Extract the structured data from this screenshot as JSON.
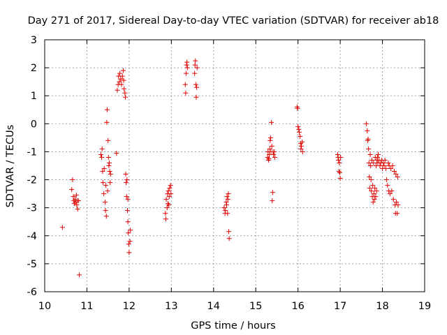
{
  "chart_data": {
    "type": "scatter",
    "title": "Day 271 of 2017, Sidereal Day-to-day VTEC variation (SDTVAR) for receiver ab18",
    "xlabel": "GPS time / hours",
    "ylabel": "SDTVAR / TECUs",
    "xlim": [
      10,
      19
    ],
    "ylim": [
      -6,
      3
    ],
    "xticks": [
      10,
      11,
      12,
      13,
      14,
      15,
      16,
      17,
      18,
      19
    ],
    "yticks": [
      -6,
      -5,
      -4,
      -3,
      -2,
      -1,
      0,
      1,
      2,
      3
    ],
    "xtick_labels": [
      "10",
      "11",
      "12",
      "13",
      "14",
      "15",
      "16",
      "17",
      "18",
      "19"
    ],
    "ytick_labels": [
      "-6",
      "-5",
      "-4",
      "-3",
      "-2",
      "-1",
      "0",
      "1",
      "2",
      "3"
    ],
    "grid": true,
    "marker": "+",
    "color": "#e00000",
    "series": [
      {
        "name": "SDTVAR",
        "points": [
          [
            10.42,
            -3.7
          ],
          [
            10.64,
            -2.35
          ],
          [
            10.66,
            -2.0
          ],
          [
            10.68,
            -2.6
          ],
          [
            10.69,
            -2.75
          ],
          [
            10.7,
            -2.85
          ],
          [
            10.72,
            -2.7
          ],
          [
            10.73,
            -2.8
          ],
          [
            10.75,
            -2.55
          ],
          [
            10.76,
            -2.9
          ],
          [
            10.77,
            -2.75
          ],
          [
            10.78,
            -3.05
          ],
          [
            10.8,
            -2.75
          ],
          [
            10.82,
            -5.4
          ],
          [
            11.33,
            -1.1
          ],
          [
            11.35,
            -1.2
          ],
          [
            11.36,
            -0.9
          ],
          [
            11.37,
            -1.7
          ],
          [
            11.38,
            -2.1
          ],
          [
            11.4,
            -2.5
          ],
          [
            11.41,
            -1.6
          ],
          [
            11.43,
            -2.8
          ],
          [
            11.44,
            -3.1
          ],
          [
            11.45,
            -2.2
          ],
          [
            11.46,
            -3.3
          ],
          [
            11.47,
            0.05
          ],
          [
            11.48,
            0.5
          ],
          [
            11.49,
            -2.4
          ],
          [
            11.5,
            -0.6
          ],
          [
            11.51,
            -1.2
          ],
          [
            11.52,
            -1.5
          ],
          [
            11.53,
            -1.4
          ],
          [
            11.54,
            -1.7
          ],
          [
            11.55,
            -2.1
          ],
          [
            11.56,
            -1.8
          ],
          [
            11.7,
            -1.05
          ],
          [
            11.72,
            1.2
          ],
          [
            11.74,
            1.4
          ],
          [
            11.75,
            1.7
          ],
          [
            11.77,
            1.5
          ],
          [
            11.78,
            1.8
          ],
          [
            11.8,
            1.6
          ],
          [
            11.82,
            1.4
          ],
          [
            11.84,
            1.7
          ],
          [
            11.86,
            1.9
          ],
          [
            11.87,
            1.55
          ],
          [
            11.88,
            1.25
          ],
          [
            11.9,
            1.1
          ],
          [
            11.91,
            0.95
          ],
          [
            11.92,
            -1.8
          ],
          [
            11.93,
            -2.1
          ],
          [
            11.94,
            -2.6
          ],
          [
            11.95,
            -2.0
          ],
          [
            11.96,
            -3.1
          ],
          [
            11.97,
            -3.5
          ],
          [
            11.98,
            -3.9
          ],
          [
            11.99,
            -4.3
          ],
          [
            12.0,
            -4.6
          ],
          [
            12.02,
            -4.2
          ],
          [
            12.03,
            -3.8
          ],
          [
            11.97,
            -2.7
          ],
          [
            12.86,
            -3.2
          ],
          [
            12.87,
            -3.4
          ],
          [
            12.88,
            -2.7
          ],
          [
            12.9,
            -3.0
          ],
          [
            12.91,
            -2.5
          ],
          [
            12.92,
            -2.85
          ],
          [
            12.93,
            -2.4
          ],
          [
            12.94,
            -2.9
          ],
          [
            12.95,
            -2.6
          ],
          [
            12.96,
            -2.3
          ],
          [
            12.98,
            -2.2
          ],
          [
            12.99,
            -2.5
          ],
          [
            13.33,
            1.4
          ],
          [
            13.34,
            1.1
          ],
          [
            13.35,
            1.8
          ],
          [
            13.36,
            2.1
          ],
          [
            13.37,
            2.2
          ],
          [
            13.38,
            2.0
          ],
          [
            13.55,
            1.8
          ],
          [
            13.56,
            2.1
          ],
          [
            13.57,
            2.25
          ],
          [
            13.58,
            1.4
          ],
          [
            13.59,
            0.95
          ],
          [
            13.6,
            1.3
          ],
          [
            13.61,
            2.0
          ],
          [
            14.25,
            -3.0
          ],
          [
            14.27,
            -3.2
          ],
          [
            14.28,
            -3.1
          ],
          [
            14.3,
            -2.8
          ],
          [
            14.31,
            -2.9
          ],
          [
            14.32,
            -2.6
          ],
          [
            14.33,
            -3.2
          ],
          [
            14.34,
            -2.7
          ],
          [
            14.35,
            -2.5
          ],
          [
            14.36,
            -3.85
          ],
          [
            14.37,
            -4.1
          ],
          [
            15.28,
            -1.2
          ],
          [
            15.29,
            -1.0
          ],
          [
            15.3,
            -1.3
          ],
          [
            15.31,
            -1.25
          ],
          [
            15.32,
            -1.1
          ],
          [
            15.33,
            -0.9
          ],
          [
            15.34,
            -0.6
          ],
          [
            15.35,
            -0.5
          ],
          [
            15.36,
            -1.0
          ],
          [
            15.37,
            0.05
          ],
          [
            15.38,
            -0.8
          ],
          [
            15.39,
            -2.75
          ],
          [
            15.4,
            -2.45
          ],
          [
            15.41,
            -1.0
          ],
          [
            15.42,
            -1.1
          ],
          [
            15.44,
            -1.0
          ],
          [
            15.45,
            -1.2
          ],
          [
            15.98,
            0.6
          ],
          [
            15.99,
            0.55
          ],
          [
            16.0,
            -0.1
          ],
          [
            16.02,
            -0.2
          ],
          [
            16.03,
            -0.3
          ],
          [
            16.05,
            -0.45
          ],
          [
            16.06,
            -0.7
          ],
          [
            16.07,
            -0.9
          ],
          [
            16.08,
            -0.8
          ],
          [
            16.1,
            -0.65
          ],
          [
            16.11,
            -1.0
          ],
          [
            16.94,
            -1.1
          ],
          [
            16.95,
            -1.2
          ],
          [
            16.96,
            -1.3
          ],
          [
            16.97,
            -1.7
          ],
          [
            16.98,
            -1.4
          ],
          [
            16.99,
            -1.75
          ],
          [
            17.0,
            -1.95
          ],
          [
            17.01,
            -1.2
          ],
          [
            17.62,
            0.0
          ],
          [
            17.64,
            -0.25
          ],
          [
            17.65,
            -0.6
          ],
          [
            17.66,
            -0.55
          ],
          [
            17.67,
            -0.9
          ],
          [
            17.68,
            -1.4
          ],
          [
            17.69,
            -1.9
          ],
          [
            17.7,
            -2.3
          ],
          [
            17.71,
            -1.1
          ],
          [
            17.72,
            -1.5
          ],
          [
            17.73,
            -2.0
          ],
          [
            17.74,
            -2.4
          ],
          [
            17.75,
            -1.3
          ],
          [
            17.76,
            -2.6
          ],
          [
            17.77,
            -2.2
          ],
          [
            17.78,
            -2.8
          ],
          [
            17.79,
            -1.4
          ],
          [
            17.8,
            -2.5
          ],
          [
            17.81,
            -2.7
          ],
          [
            17.82,
            -2.3
          ],
          [
            17.83,
            -1.2
          ],
          [
            17.84,
            -2.6
          ],
          [
            17.85,
            -1.5
          ],
          [
            17.86,
            -2.4
          ],
          [
            17.87,
            -1.3
          ],
          [
            17.88,
            -1.2
          ],
          [
            17.89,
            -1.4
          ],
          [
            17.9,
            -1.1
          ],
          [
            17.92,
            -1.3
          ],
          [
            17.94,
            -1.5
          ],
          [
            17.96,
            -1.4
          ],
          [
            17.98,
            -1.3
          ],
          [
            18.0,
            -1.6
          ],
          [
            18.02,
            -1.4
          ],
          [
            18.04,
            -1.5
          ],
          [
            18.06,
            -1.3
          ],
          [
            18.08,
            -1.6
          ],
          [
            18.1,
            -2.0
          ],
          [
            18.12,
            -2.2
          ],
          [
            18.14,
            -1.4
          ],
          [
            18.15,
            -2.4
          ],
          [
            18.16,
            -1.5
          ],
          [
            18.18,
            -2.5
          ],
          [
            18.2,
            -1.6
          ],
          [
            18.22,
            -2.4
          ],
          [
            18.24,
            -1.5
          ],
          [
            18.26,
            -2.7
          ],
          [
            18.28,
            -1.7
          ],
          [
            18.3,
            -2.9
          ],
          [
            18.31,
            -3.2
          ],
          [
            18.32,
            -1.8
          ],
          [
            18.33,
            -2.8
          ],
          [
            18.35,
            -3.2
          ],
          [
            18.36,
            -1.9
          ],
          [
            18.37,
            -2.9
          ]
        ]
      }
    ]
  }
}
